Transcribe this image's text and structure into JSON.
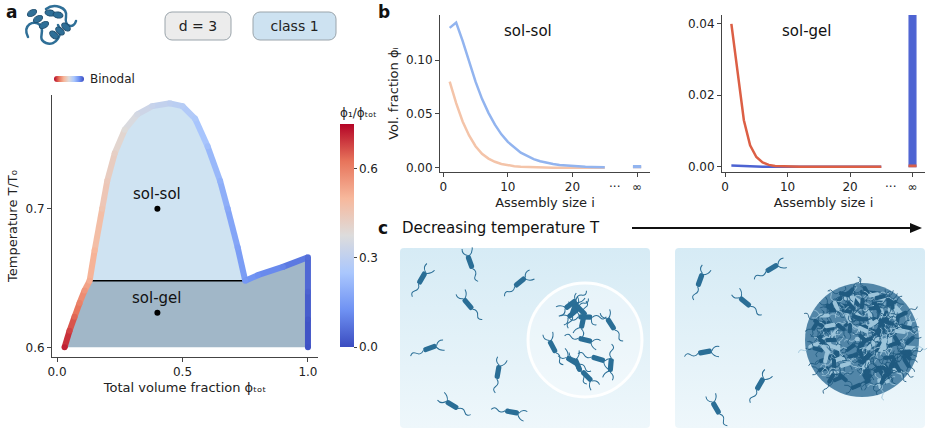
{
  "figure": {
    "panel_labels": [
      "a",
      "b",
      "c"
    ],
    "badges": [
      {
        "text": "d = 3",
        "color": "#ececec"
      },
      {
        "text": "class 1",
        "color": "#cde2f1"
      }
    ],
    "illustration_title": "Decreasing temperature T"
  },
  "chart_data": [
    {
      "type": "phase_diagram",
      "x_label": "Total volume fraction ϕₜₒₜ",
      "y_label": "Temperature T/T₀",
      "xlim": [
        -0.02,
        1.04
      ],
      "xticks": [
        {
          "value": 0,
          "label": "0.0"
        },
        {
          "value": 0.5,
          "label": "0.5"
        },
        {
          "value": 1,
          "label": "1.0"
        }
      ],
      "ylim": [
        0.593,
        0.782
      ],
      "yticks": [
        0.6,
        0.7
      ],
      "grid": false,
      "legend": "top left",
      "series": [
        {
          "name": "Binodal",
          "x": [
            0.03,
            0.05,
            0.07,
            0.09,
            0.11,
            0.13,
            0.15,
            0.18,
            0.2,
            0.23,
            0.27,
            0.32,
            0.38,
            0.45,
            0.5,
            0.55,
            0.6,
            0.65,
            0.68,
            0.72,
            0.75,
            0.8,
            0.9,
            1.0,
            1.0,
            1.0,
            1.0
          ],
          "y": [
            0.6,
            0.612,
            0.622,
            0.632,
            0.641,
            0.648,
            0.67,
            0.7,
            0.72,
            0.74,
            0.757,
            0.768,
            0.774,
            0.776,
            0.774,
            0.765,
            0.745,
            0.72,
            0.7,
            0.672,
            0.648,
            0.652,
            0.658,
            0.665,
            0.64,
            0.62,
            0.6
          ],
          "color_values": [
            0.72,
            0.68,
            0.64,
            0.6,
            0.56,
            0.52,
            0.5,
            0.46,
            0.44,
            0.42,
            0.38,
            0.35,
            0.32,
            0.3,
            0.28,
            0.26,
            0.23,
            0.2,
            0.18,
            0.16,
            0.14,
            0.12,
            0.1,
            0.06,
            0.04,
            0.02,
            0.01
          ]
        }
      ],
      "color_bar": {
        "title": "ϕ₁/ϕₜₒₜ",
        "range": [
          0,
          0.75
        ],
        "ticks": [
          {
            "value": 0,
            "label": "0.0"
          },
          {
            "value": 0.3,
            "label": "0.3"
          },
          {
            "value": 0.6,
            "label": "0.6"
          }
        ],
        "colors": [
          "#3b4cc0",
          "#6f92f3",
          "#aac7fd",
          "#dddcdc",
          "#f7b89c",
          "#e7745b",
          "#b40426"
        ]
      },
      "tie_line": {
        "x": [
          0.13,
          0.75
        ],
        "y": [
          0.648,
          0.648
        ],
        "color": "#000000"
      },
      "regions": [
        {
          "x": [
            0.13,
            0.15,
            0.18,
            0.2,
            0.23,
            0.27,
            0.32,
            0.38,
            0.45,
            0.5,
            0.55,
            0.6,
            0.65,
            0.68,
            0.72,
            0.75
          ],
          "y": [
            0.648,
            0.67,
            0.7,
            0.72,
            0.74,
            0.757,
            0.768,
            0.774,
            0.776,
            0.774,
            0.765,
            0.745,
            0.72,
            0.7,
            0.672,
            0.648
          ],
          "color": "#cfe3f2"
        },
        {
          "x": [
            0.03,
            0.05,
            0.07,
            0.09,
            0.11,
            0.13,
            0.75,
            0.8,
            0.9,
            1.0,
            1.0
          ],
          "y": [
            0.6,
            0.612,
            0.622,
            0.632,
            0.641,
            0.648,
            0.648,
            0.652,
            0.658,
            0.665,
            0.6
          ],
          "color": "#a1b7c8"
        }
      ],
      "points": [
        {
          "label": "sol-sol",
          "x": 0.4,
          "y": 0.7
        },
        {
          "label": "sol-gel",
          "x": 0.4,
          "y": 0.625
        }
      ]
    },
    {
      "type": "line",
      "title": "sol-sol",
      "x_label": "Assembly size i",
      "y_label": "Vol. fraction ϕᵢ",
      "x": [
        1,
        2,
        3,
        4,
        5,
        6,
        7,
        8,
        9,
        10,
        11,
        12,
        13,
        14,
        15,
        16,
        17,
        18,
        19,
        20,
        21,
        22,
        23,
        24,
        25
      ],
      "inf_x": 30,
      "series": [
        {
          "color": "#f4c4a9",
          "values": [
            0.08,
            0.06,
            0.043,
            0.03,
            0.02,
            0.013,
            0.0085,
            0.0055,
            0.0035,
            0.0022,
            0.0014,
            0.0009,
            0.0006,
            0.0004,
            0.0002,
            0.0001,
            0,
            0,
            0,
            0,
            0,
            0,
            0,
            0,
            0
          ],
          "inf_value": 0.001
        },
        {
          "color": "#92b4ef",
          "values": [
            0.13,
            0.135,
            0.118,
            0.098,
            0.08,
            0.064,
            0.051,
            0.04,
            0.031,
            0.024,
            0.019,
            0.014,
            0.011,
            0.008,
            0.006,
            0.0046,
            0.0035,
            0.0026,
            0.002,
            0.0015,
            0.0011,
            0.0008,
            0.0006,
            0.0005,
            0.0004
          ],
          "inf_value": 0.002
        }
      ],
      "xlim": [
        -0.5,
        32
      ],
      "xticks": [
        0,
        10,
        20,
        {
          "value": 30,
          "label": "∞"
        }
      ],
      "ylim": [
        -0.004,
        0.142
      ],
      "yticks": [
        {
          "value": 0,
          "label": "0.00"
        },
        {
          "value": 0.05,
          "label": "0.05"
        },
        {
          "value": 0.1,
          "label": "0.10"
        }
      ],
      "break_label": {
        "text": "...",
        "x": 26.5
      },
      "grid": false
    },
    {
      "type": "line",
      "title": "sol-gel",
      "x_label": "Assembly size i",
      "x": [
        1,
        2,
        3,
        4,
        5,
        6,
        7,
        8,
        9,
        10,
        11,
        12,
        13,
        14,
        15,
        16,
        17,
        18,
        19,
        20,
        21,
        22,
        23,
        24,
        25
      ],
      "inf_x": 30,
      "series": [
        {
          "color": "#4d63d2",
          "values": [
            0.0003,
            0.0002,
            0.0001,
            0.0001,
            0,
            0,
            0,
            0,
            0,
            0,
            0,
            0,
            0,
            0,
            0,
            0,
            0,
            0,
            0,
            0,
            0,
            0,
            0,
            0,
            0
          ],
          "inf_value": 0.36
        },
        {
          "color": "#dc5f45",
          "values": [
            0.04,
            0.027,
            0.013,
            0.006,
            0.0027,
            0.0012,
            0.0005,
            0.0002,
            0.0001,
            0,
            0,
            0,
            0,
            0,
            0,
            0,
            0,
            0,
            0,
            0,
            0,
            0,
            0,
            0,
            0
          ],
          "inf_value": 0.0004
        }
      ],
      "xlim": [
        -0.5,
        32
      ],
      "xticks": [
        0,
        10,
        20,
        {
          "value": 30,
          "label": "∞"
        }
      ],
      "ylim": [
        -0.0015,
        0.0425
      ],
      "yticks": [
        {
          "value": 0,
          "label": "0.00"
        },
        {
          "value": 0.02,
          "label": "0.02"
        },
        {
          "value": 0.04,
          "label": "0.04"
        }
      ],
      "break_label": {
        "text": "...",
        "x": 26.5
      },
      "grid": false
    }
  ]
}
